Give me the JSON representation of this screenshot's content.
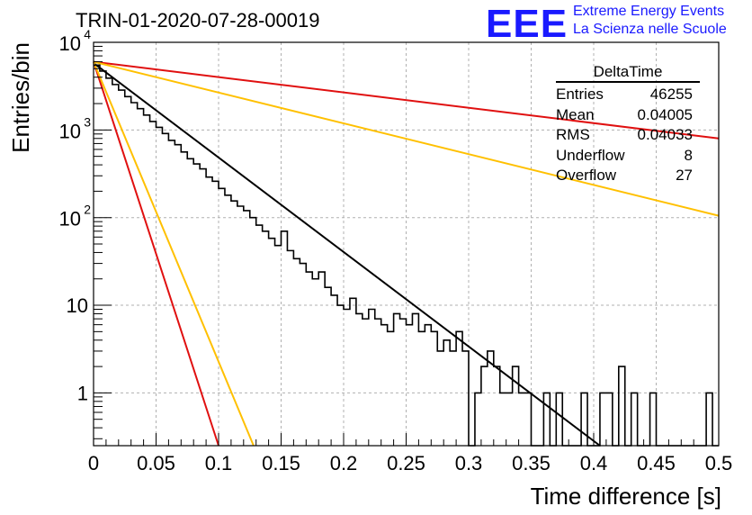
{
  "header": {
    "title": "TRIN-01-2020-07-28-00019",
    "logo": "EEE",
    "org_line1": "Extreme Energy Events",
    "org_line2": "La Scienza nelle Scuole"
  },
  "stats": {
    "title": "DeltaTime",
    "rows": [
      {
        "label": "Entries",
        "value": "46255"
      },
      {
        "label": "Mean",
        "value": "0.04005"
      },
      {
        "label": "RMS",
        "value": "0.04033"
      },
      {
        "label": "Underflow",
        "value": "8"
      },
      {
        "label": "Overflow",
        "value": "27"
      }
    ]
  },
  "chart_data": {
    "type": "histogram",
    "title": "TRIN-01-2020-07-28-00019",
    "xlabel": "Time difference [s]",
    "ylabel": "Entries/bin",
    "xlim": [
      0,
      0.5
    ],
    "ylim": [
      0.25,
      10000
    ],
    "yscale": "log",
    "grid": true,
    "x_ticks": [
      "0",
      "0.05",
      "0.1",
      "0.15",
      "0.2",
      "0.25",
      "0.3",
      "0.35",
      "0.4",
      "0.45",
      "0.5"
    ],
    "y_ticks": [
      {
        "value": 1,
        "label": "1"
      },
      {
        "value": 10,
        "label": "10"
      },
      {
        "value": 100,
        "label": "10",
        "exp": "2"
      },
      {
        "value": 1000,
        "label": "10",
        "exp": "3"
      },
      {
        "value": 10000,
        "label": "10",
        "exp": "4"
      }
    ],
    "bin_width": 0.005,
    "histogram_counts": [
      5500,
      4700,
      3900,
      3300,
      2850,
      2400,
      2050,
      1750,
      1480,
      1250,
      1070,
      910,
      760,
      680,
      560,
      470,
      410,
      360,
      290,
      260,
      215,
      180,
      155,
      135,
      120,
      100,
      82,
      70,
      58,
      48,
      70,
      42,
      34,
      30,
      24,
      20,
      24,
      16,
      13,
      10,
      9,
      12,
      8,
      7,
      9,
      7,
      6,
      5,
      8,
      7,
      6,
      8,
      5,
      6,
      5,
      3,
      4,
      3,
      5,
      3,
      0.1,
      1,
      2,
      3,
      2,
      1,
      1,
      2,
      1,
      1,
      0.1,
      0.1,
      1,
      0.1,
      1,
      0.1,
      0.1,
      0.1,
      1,
      0.1,
      0.1,
      1,
      1,
      0.1,
      2,
      0.1,
      1,
      0.1,
      0.1,
      1,
      0.1,
      0.1,
      0.1,
      0.1,
      0.1,
      0.1,
      0.1,
      0.1,
      1,
      0.1
    ],
    "curves": [
      {
        "color": "#000000",
        "x0": 0,
        "y0": 5800,
        "x1": 0.405,
        "y1": 0.25
      },
      {
        "color": "#e01010",
        "x0": 0,
        "y0": 6000,
        "x1": 0.5,
        "y1": 800
      },
      {
        "color": "#ffc000",
        "x0": 0,
        "y0": 6000,
        "x1": 0.5,
        "y1": 105
      },
      {
        "color": "#e01010",
        "x0": 0,
        "y0": 6000,
        "x1": 0.1,
        "y1": 0.25
      },
      {
        "color": "#ffc000",
        "x0": 0,
        "y0": 6000,
        "x1": 0.128,
        "y1": 0.25
      }
    ]
  }
}
